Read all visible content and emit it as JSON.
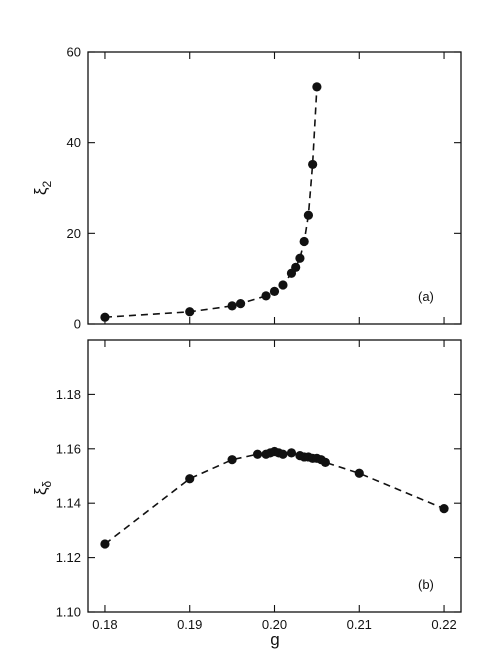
{
  "chart_data": [
    {
      "type": "line",
      "panel_label": "(a)",
      "ylabel": "ξ",
      "ylabel_sub": "2",
      "xlim": [
        0.178,
        0.222
      ],
      "ylim": [
        0,
        60
      ],
      "yticks": [
        0,
        20,
        40,
        60
      ],
      "grid": false,
      "series": [
        {
          "x": [
            0.18,
            0.19,
            0.195,
            0.196,
            0.199,
            0.2,
            0.201,
            0.202,
            0.2025,
            0.203,
            0.2035,
            0.204,
            0.2045,
            0.205
          ],
          "y": [
            1.5,
            2.7,
            4.0,
            4.5,
            6.2,
            7.2,
            8.6,
            11.2,
            12.5,
            14.5,
            18.2,
            24.0,
            35.2,
            52.3
          ]
        }
      ]
    },
    {
      "type": "line",
      "panel_label": "(b)",
      "ylabel": "ξ",
      "ylabel_sub": "δ",
      "xlabel": "g",
      "xlim": [
        0.178,
        0.222
      ],
      "ylim": [
        1.1,
        1.2
      ],
      "yticks": [
        "1.10",
        "1.12",
        "1.14",
        "1.16",
        "1.18"
      ],
      "xticks": [
        "0.18",
        "0.19",
        "0.20",
        "0.21",
        "0.22"
      ],
      "grid": false,
      "series": [
        {
          "x": [
            0.18,
            0.19,
            0.195,
            0.198,
            0.199,
            0.1995,
            0.2,
            0.2005,
            0.201,
            0.202,
            0.203,
            0.2035,
            0.204,
            0.2045,
            0.205,
            0.2055,
            0.206,
            0.21,
            0.22
          ],
          "y": [
            1.125,
            1.149,
            1.156,
            1.158,
            1.158,
            1.1585,
            1.159,
            1.1585,
            1.158,
            1.1585,
            1.1575,
            1.157,
            1.157,
            1.1565,
            1.1565,
            1.156,
            1.155,
            1.151,
            1.138
          ]
        }
      ]
    }
  ]
}
